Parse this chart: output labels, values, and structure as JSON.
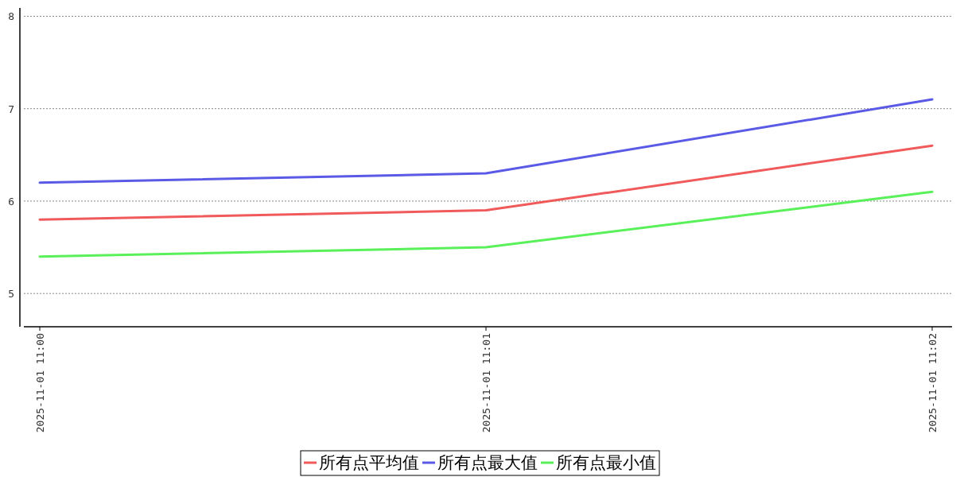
{
  "chart_data": {
    "type": "line",
    "categories": [
      "2025-11-01 11:00",
      "2025-11-01 11:01",
      "2025-11-01 11:02"
    ],
    "series": [
      {
        "name": "所有点平均值",
        "color": "#f05a5a",
        "values": [
          5.8,
          5.9,
          6.6
        ]
      },
      {
        "name": "所有点最大值",
        "color": "#5a5ae6",
        "values": [
          6.2,
          6.3,
          7.1
        ]
      },
      {
        "name": "所有点最小值",
        "color": "#5af05a",
        "values": [
          5.4,
          5.5,
          6.1
        ]
      }
    ],
    "ylim": [
      4.64,
      8.09
    ],
    "yticks": [
      5,
      6,
      7,
      8
    ],
    "grid": "y",
    "legend": "bottom",
    "marker": "none",
    "line_style": "solid"
  }
}
